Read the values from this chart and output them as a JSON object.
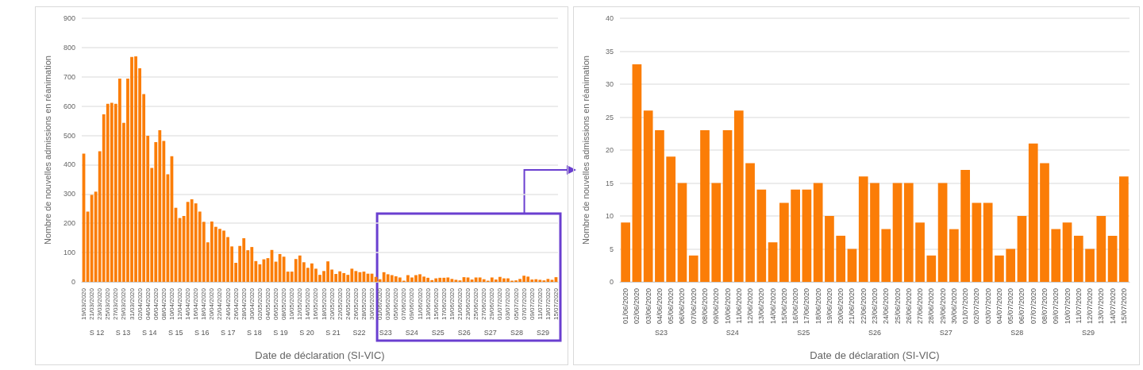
{
  "chart_data": [
    {
      "type": "bar",
      "xlabel": "Date de déclaration (SI-VIC)",
      "ylabel": "Nombre de nouvelles admissions en réanimation",
      "color": "#fb7d07",
      "grid": "y",
      "ylim": [
        0,
        900
      ],
      "yticks": [
        0,
        100,
        200,
        300,
        400,
        500,
        600,
        700,
        800,
        900
      ],
      "categories": [
        "19/03/2020",
        null,
        "21/03/2020",
        null,
        "23/03/2020",
        null,
        "25/03/2020",
        null,
        "27/03/2020",
        null,
        "29/03/2020",
        null,
        "31/03/2020",
        null,
        "02/04/2020",
        null,
        "04/04/2020",
        null,
        "06/04/2020",
        null,
        "08/04/2020",
        null,
        "10/04/2020",
        null,
        "12/04/2020",
        null,
        "14/04/2020",
        null,
        "16/04/2020",
        null,
        "18/04/2020",
        null,
        "20/04/2020",
        null,
        "22/04/2020",
        null,
        "24/04/2020",
        null,
        "26/04/2020",
        null,
        "28/04/2020",
        null,
        "30/04/2020",
        null,
        "02/05/2020",
        null,
        "04/05/2020",
        null,
        "06/05/2020",
        null,
        "08/05/2020",
        null,
        "10/05/2020",
        null,
        "12/05/2020",
        null,
        "14/05/2020",
        null,
        "16/05/2020",
        null,
        "18/05/2020",
        null,
        "20/05/2020",
        null,
        "22/05/2020",
        null,
        "24/05/2020",
        null,
        "26/05/2020",
        null,
        "28/05/2020",
        null,
        "30/05/2020",
        null,
        "01/06/2020",
        null,
        "03/06/2020",
        null,
        "05/06/2020",
        null,
        "07/06/2020",
        null,
        "09/06/2020",
        null,
        "11/06/2020",
        null,
        "13/06/2020",
        null,
        "15/06/2020",
        null,
        "17/06/2020",
        null,
        "19/06/2020",
        null,
        "21/06/2020",
        null,
        "23/06/2020",
        null,
        "25/06/2020",
        null,
        "27/06/2020",
        null,
        "29/06/2020",
        null,
        "01/07/2020",
        null,
        "03/07/2020",
        null,
        "05/07/2020",
        null,
        "07/07/2020",
        null,
        "09/07/2020",
        null,
        "11/07/2020",
        null,
        "13/07/2020",
        null,
        "15/07/2020"
      ],
      "values": [
        438,
        240,
        297,
        308,
        446,
        572,
        608,
        611,
        608,
        694,
        543,
        694,
        768,
        770,
        729,
        641,
        499,
        389,
        477,
        518,
        481,
        367,
        429,
        253,
        218,
        225,
        273,
        282,
        268,
        240,
        205,
        135,
        206,
        188,
        181,
        175,
        153,
        121,
        65,
        123,
        149,
        108,
        119,
        71,
        60,
        77,
        81,
        109,
        69,
        95,
        86,
        35,
        35,
        78,
        90,
        67,
        48,
        63,
        45,
        24,
        37,
        70,
        42,
        27,
        36,
        30,
        24,
        45,
        37,
        33,
        35,
        28,
        28,
        17,
        9,
        33,
        26,
        23,
        19,
        15,
        4,
        23,
        15,
        23,
        26,
        18,
        14,
        6,
        12,
        14,
        14,
        15,
        10,
        7,
        5,
        16,
        15,
        8,
        15,
        15,
        9,
        4,
        15,
        8,
        17,
        12,
        12,
        4,
        5,
        10,
        21,
        18,
        8,
        9,
        7,
        5,
        10,
        7,
        16
      ],
      "annotations": [
        "S 12",
        "S 13",
        "S 14",
        "S 15",
        "S 16",
        "S 17",
        "S 18",
        "S 19",
        "S 20",
        "S 21",
        "S22",
        "S23",
        "S24",
        "S25",
        "S26",
        "S27",
        "S28",
        "S29"
      ]
    },
    {
      "type": "bar",
      "xlabel": "Date de déclaration (SI-VIC)",
      "ylabel": "Nombre de nouvelles admissions en réanimation",
      "color": "#fb7d07",
      "grid": "y",
      "ylim": [
        0,
        40
      ],
      "yticks": [
        0,
        5,
        10,
        15,
        20,
        25,
        30,
        35,
        40
      ],
      "categories": [
        "01/06/2020",
        "02/06/2020",
        "03/06/2020",
        "04/06/2020",
        "05/06/2020",
        "06/06/2020",
        "07/06/2020",
        "08/06/2020",
        "09/06/2020",
        "10/06/2020",
        "11/06/2020",
        "12/06/2020",
        "13/06/2020",
        "14/06/2020",
        "15/06/2020",
        "16/06/2020",
        "17/06/2020",
        "18/06/2020",
        "19/06/2020",
        "20/06/2020",
        "21/06/2020",
        "22/06/2020",
        "23/06/2020",
        "24/06/2020",
        "25/06/2020",
        "26/06/2020",
        "27/06/2020",
        "28/06/2020",
        "29/06/2020",
        "30/06/2020",
        "01/07/2020",
        "02/07/2020",
        "03/07/2020",
        "04/07/2020",
        "05/07/2020",
        "06/07/2020",
        "07/07/2020",
        "08/07/2020",
        "09/07/2020",
        "10/07/2020",
        "11/07/2020",
        "12/07/2020",
        "13/07/2020",
        "14/07/2020",
        "15/07/2020"
      ],
      "values": [
        9,
        33,
        26,
        23,
        19,
        15,
        4,
        23,
        15,
        23,
        26,
        18,
        14,
        6,
        12,
        14,
        14,
        15,
        10,
        7,
        5,
        16,
        15,
        8,
        15,
        15,
        9,
        4,
        15,
        8,
        17,
        12,
        12,
        4,
        5,
        10,
        21,
        18,
        8,
        9,
        7,
        5,
        10,
        7,
        16
      ],
      "annotations": [
        "S23",
        "S24",
        "S25",
        "S26",
        "S27",
        "S28",
        "S29"
      ]
    }
  ]
}
